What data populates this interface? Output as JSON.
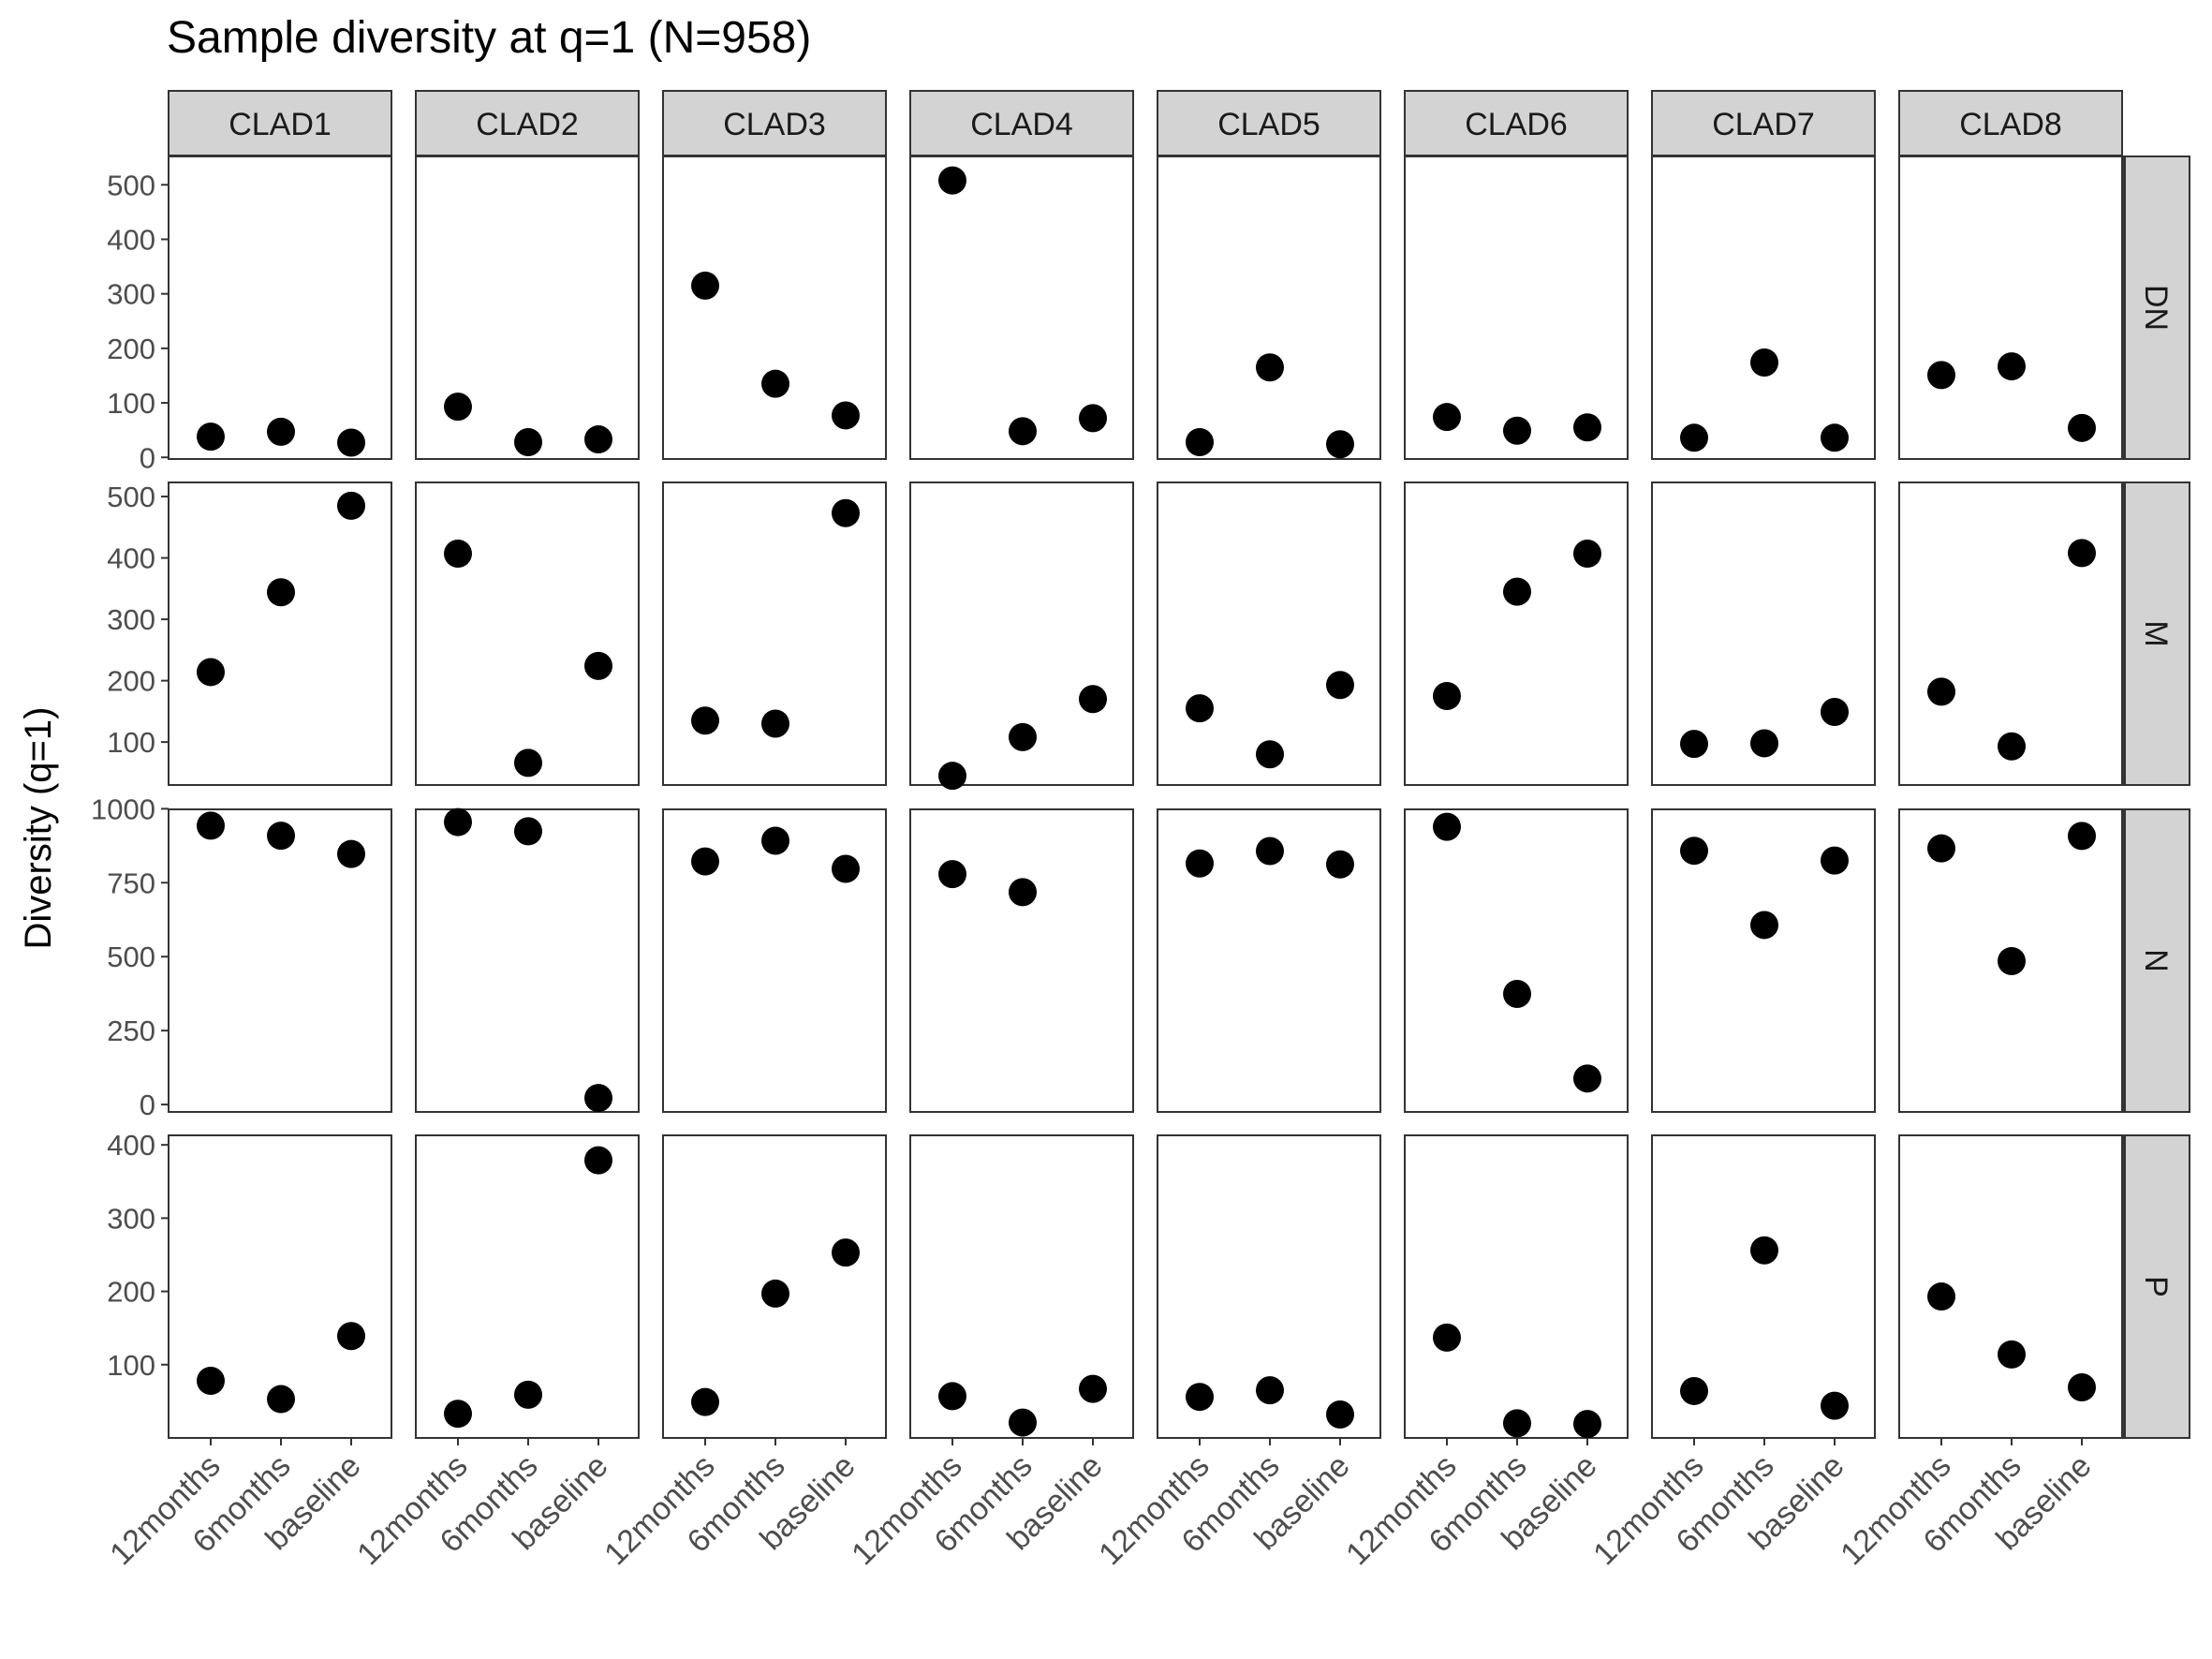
{
  "chart_data": {
    "type": "scatter",
    "title": "Sample diversity at q=1 (N=958)",
    "ylabel": "Diversity (q=1)",
    "xlabel": "",
    "categories": [
      "12months",
      "6months",
      "baseline"
    ],
    "columns": [
      "CLAD1",
      "CLAD2",
      "CLAD3",
      "CLAD4",
      "CLAD5",
      "CLAD6",
      "CLAD7",
      "CLAD8"
    ],
    "grid": false,
    "legend": "none",
    "facet_type": "grid",
    "point_color": "#000000",
    "strip_color": "#d3d3d3",
    "rows": [
      {
        "label": "DN",
        "ylim": [
          -3,
          552
        ],
        "yticks": [
          0,
          100,
          200,
          300,
          400,
          500
        ],
        "values": [
          [
            38,
            47,
            27
          ],
          [
            93,
            28,
            33
          ],
          [
            315,
            135,
            77
          ],
          [
            508,
            48,
            72
          ],
          [
            28,
            165,
            24
          ],
          [
            74,
            49,
            55
          ],
          [
            36,
            174,
            36
          ],
          [
            151,
            167,
            54
          ]
        ]
      },
      {
        "label": "M",
        "ylim": [
          30,
          523
        ],
        "yticks": [
          100,
          200,
          300,
          400,
          500
        ],
        "values": [
          [
            214,
            344,
            485
          ],
          [
            407,
            66,
            224
          ],
          [
            135,
            130,
            473
          ],
          [
            45,
            108,
            170
          ],
          [
            155,
            80,
            193
          ],
          [
            175,
            345,
            407
          ],
          [
            97,
            98,
            149
          ],
          [
            182,
            93,
            408
          ]
        ]
      },
      {
        "label": "N",
        "ylim": [
          -25,
          998
        ],
        "yticks": [
          0,
          250,
          500,
          750,
          1000
        ],
        "values": [
          [
            943,
            909,
            847
          ],
          [
            955,
            924,
            22
          ],
          [
            822,
            892,
            797
          ],
          [
            779,
            718,
            null
          ],
          [
            815,
            857,
            812
          ],
          [
            939,
            374,
            88
          ],
          [
            858,
            607,
            825
          ],
          [
            866,
            485,
            908
          ]
        ]
      },
      {
        "label": "P",
        "ylim": [
          0,
          413
        ],
        "yticks": [
          100,
          200,
          300,
          400
        ],
        "values": [
          [
            78,
            53,
            139
          ],
          [
            33,
            59,
            379
          ],
          [
            49,
            197,
            253
          ],
          [
            57,
            21,
            67
          ],
          [
            56,
            65,
            32
          ],
          [
            137,
            20,
            19
          ],
          [
            64,
            256,
            44
          ],
          [
            193,
            114,
            69
          ]
        ]
      }
    ]
  }
}
